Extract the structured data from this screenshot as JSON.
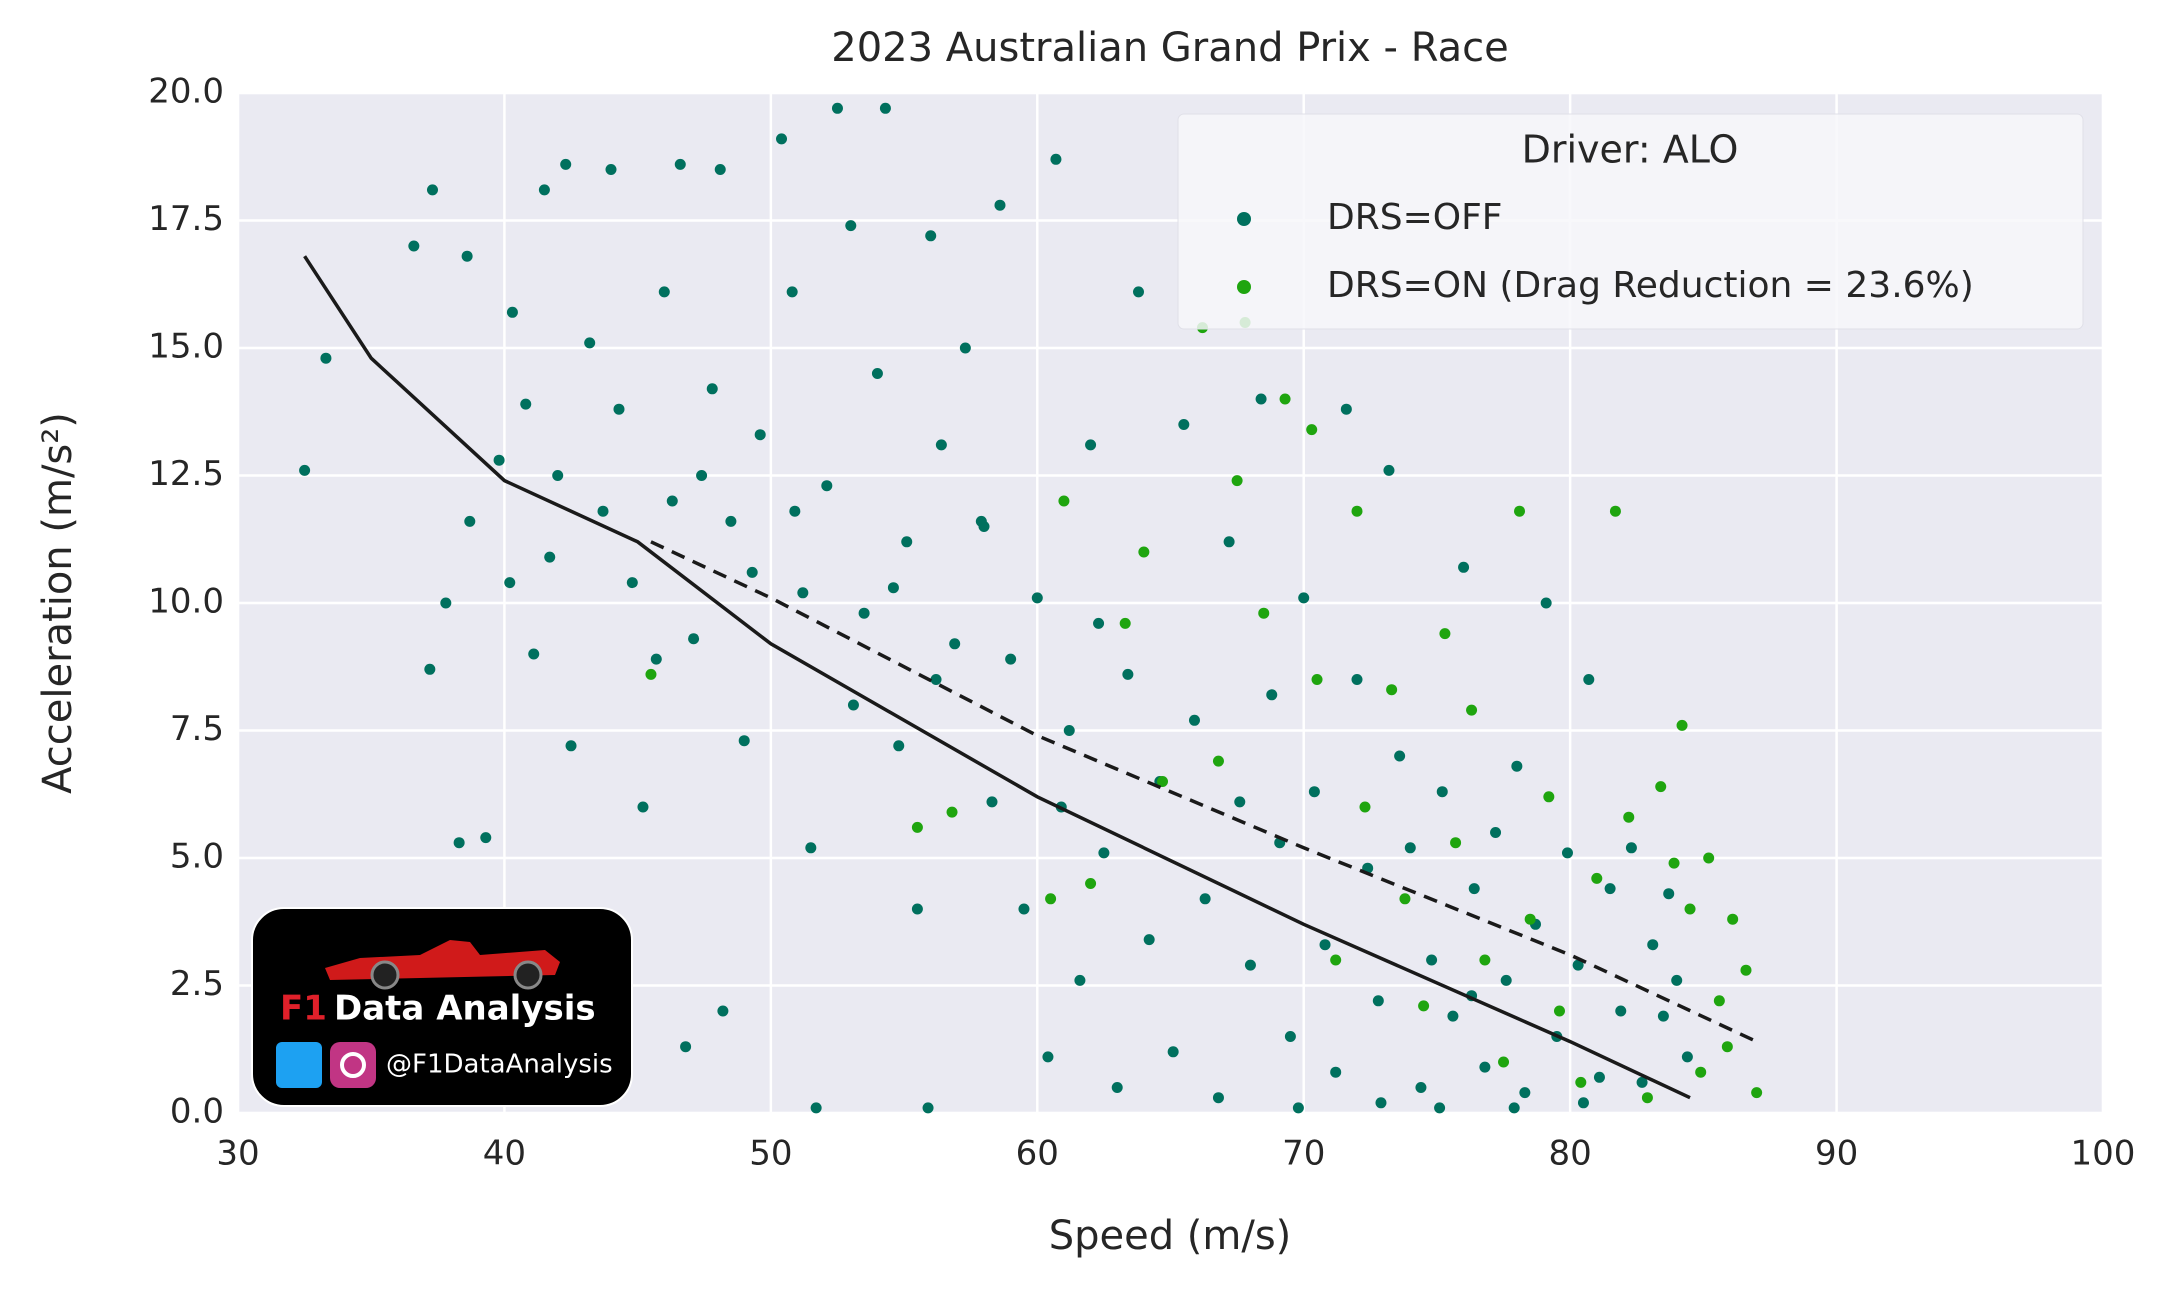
{
  "chart_data": {
    "type": "scatter",
    "title": "2023 Australian Grand Prix - Race",
    "xlabel": "Speed (m/s)",
    "ylabel": "Acceleration (m/s²)",
    "legend_title": "Driver: ALO",
    "legend_position": "upper right",
    "grid": true,
    "xlim": [
      30,
      100
    ],
    "xticks": [
      30,
      40,
      50,
      60,
      70,
      80,
      90,
      100
    ],
    "ylim": [
      0,
      20
    ],
    "yticks": [
      {
        "value": 0,
        "label": "0.0"
      },
      2.5,
      {
        "value": 5,
        "label": "5.0"
      },
      7.5,
      {
        "value": 10,
        "label": "10.0"
      },
      12.5,
      {
        "value": 15,
        "label": "15.0"
      },
      17.5,
      {
        "value": 20,
        "label": "20.0"
      }
    ],
    "series": [
      {
        "name": "DRS=OFF",
        "color": "#00705e",
        "x": [
          32.5,
          33.3,
          36.6,
          37.3,
          37.2,
          37.8,
          38.6,
          38.7,
          38.3,
          39.3,
          40.3,
          40.8,
          41.5,
          41.1,
          42.3,
          42.0,
          42.5,
          43.2,
          44.0,
          44.3,
          44.8,
          45.2,
          46.0,
          46.3,
          46.6,
          47.1,
          47.8,
          48.1,
          48.5,
          49.0,
          49.6,
          50.4,
          50.8,
          51.2,
          51.5,
          52.1,
          52.5,
          53.0,
          53.5,
          54.0,
          54.3,
          54.8,
          55.1,
          55.5,
          56.0,
          56.4,
          56.9,
          57.3,
          57.9,
          58.3,
          58.6,
          59.0,
          59.5,
          60.0,
          60.4,
          60.7,
          61.2,
          61.6,
          62.0,
          62.5,
          63.0,
          63.4,
          63.8,
          64.2,
          64.6,
          65.1,
          65.5,
          65.9,
          66.3,
          66.8,
          67.2,
          67.6,
          68.0,
          68.4,
          68.8,
          69.1,
          69.5,
          70.0,
          70.4,
          70.8,
          71.2,
          71.6,
          72.0,
          72.4,
          72.8,
          73.2,
          73.6,
          74.0,
          74.4,
          74.8,
          75.2,
          75.6,
          76.0,
          76.4,
          76.8,
          77.2,
          77.6,
          78.0,
          78.3,
          78.7,
          79.1,
          79.5,
          79.9,
          80.3,
          80.7,
          81.1,
          81.5,
          81.9,
          82.3,
          82.7,
          83.1,
          83.5,
          84.0,
          84.4,
          83.7,
          60.9,
          62.3,
          58.0,
          56.2,
          54.6,
          53.1,
          50.9,
          49.3,
          47.4,
          45.7,
          43.7,
          41.7,
          40.2,
          39.8,
          48.2,
          51.7,
          55.9,
          46.8,
          76.3,
          75.1,
          77.9,
          80.5,
          72.9,
          69.8
        ],
        "values": [
          12.6,
          14.8,
          17.0,
          18.1,
          8.7,
          10.0,
          16.8,
          11.6,
          5.3,
          5.4,
          15.7,
          13.9,
          18.1,
          9.0,
          18.6,
          12.5,
          7.2,
          15.1,
          18.5,
          13.8,
          10.4,
          6.0,
          16.1,
          12.0,
          18.6,
          9.3,
          14.2,
          18.5,
          11.6,
          7.3,
          13.3,
          19.1,
          16.1,
          10.2,
          5.2,
          12.3,
          19.7,
          17.4,
          9.8,
          14.5,
          19.7,
          7.2,
          11.2,
          4.0,
          17.2,
          13.1,
          9.2,
          15.0,
          11.6,
          6.1,
          17.8,
          8.9,
          4.0,
          10.1,
          1.1,
          18.7,
          7.5,
          2.6,
          13.1,
          5.1,
          0.5,
          8.6,
          16.1,
          3.4,
          6.5,
          1.2,
          13.5,
          7.7,
          4.2,
          0.3,
          11.2,
          6.1,
          2.9,
          14.0,
          8.2,
          5.3,
          1.5,
          10.1,
          6.3,
          3.3,
          0.8,
          13.8,
          8.5,
          4.8,
          2.2,
          12.6,
          7.0,
          5.2,
          0.5,
          3.0,
          6.3,
          1.9,
          10.7,
          4.4,
          0.9,
          5.5,
          2.6,
          6.8,
          0.4,
          3.7,
          10.0,
          1.5,
          5.1,
          2.9,
          8.5,
          0.7,
          4.4,
          2.0,
          5.2,
          0.6,
          3.3,
          1.9,
          2.6,
          1.1,
          4.3,
          6.0,
          9.6,
          11.5,
          8.5,
          10.3,
          8.0,
          11.8,
          10.6,
          12.5,
          8.9,
          11.8,
          10.9,
          10.4,
          12.8,
          2.0,
          0.1,
          0.1,
          1.3,
          2.3,
          0.1,
          0.1,
          0.2,
          0.2,
          0.1
        ]
      },
      {
        "name": "DRS=ON (Drag Reduction = 23.6%)",
        "color": "#1fa50f",
        "x": [
          45.5,
          55.5,
          56.8,
          60.5,
          61.0,
          62.0,
          63.3,
          64.0,
          64.7,
          66.2,
          66.8,
          67.5,
          67.8,
          68.5,
          69.3,
          70.3,
          70.5,
          71.2,
          72.0,
          72.3,
          73.3,
          73.8,
          74.5,
          75.3,
          75.7,
          76.3,
          76.8,
          77.5,
          78.1,
          78.5,
          79.2,
          79.6,
          80.4,
          81.0,
          81.7,
          82.2,
          82.9,
          83.4,
          83.9,
          84.2,
          84.9,
          85.2,
          85.6,
          86.1,
          86.6,
          87.0,
          85.9,
          84.5
        ],
        "values": [
          8.6,
          5.6,
          5.9,
          4.2,
          12.0,
          4.5,
          9.6,
          11.0,
          6.5,
          15.4,
          6.9,
          12.4,
          15.5,
          9.8,
          14.0,
          13.4,
          8.5,
          3.0,
          11.8,
          6.0,
          8.3,
          4.2,
          2.1,
          9.4,
          5.3,
          7.9,
          3.0,
          1.0,
          11.8,
          3.8,
          6.2,
          2.0,
          0.6,
          4.6,
          11.8,
          5.8,
          0.3,
          6.4,
          4.9,
          7.6,
          0.8,
          5.0,
          2.2,
          3.8,
          2.8,
          0.4,
          1.3,
          4.0
        ]
      }
    ],
    "fit_lines": [
      {
        "color": "#1a1a1a",
        "dashed": false,
        "x": [
          32.5,
          35,
          40,
          45,
          50,
          60,
          70,
          80,
          84.5
        ],
        "values": [
          16.8,
          14.8,
          12.4,
          11.2,
          9.2,
          6.2,
          3.7,
          1.4,
          0.3
        ]
      },
      {
        "color": "#1a1a1a",
        "dashed": true,
        "x": [
          45.5,
          50,
          60,
          70,
          80,
          87
        ],
        "values": [
          11.2,
          10.1,
          7.4,
          5.2,
          3.1,
          1.4
        ]
      }
    ]
  },
  "logo": {
    "brand_a": "F1",
    "brand_b": "Data Analysis",
    "handle": "@F1DataAnalysis"
  }
}
